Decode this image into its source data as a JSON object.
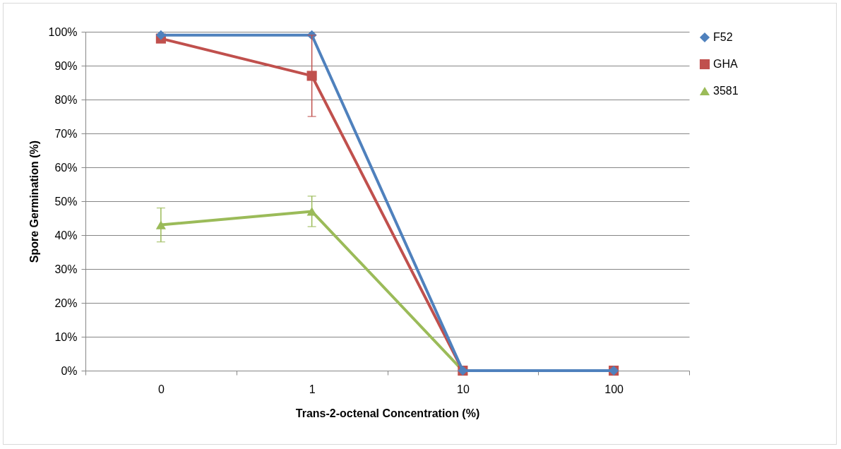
{
  "chart_data": {
    "type": "line",
    "xlabel": "Trans-2-octenal Concentration (%)",
    "ylabel": "Spore Germination (%)",
    "categories": [
      "0",
      "1",
      "10",
      "100"
    ],
    "series": [
      {
        "name": "F52",
        "color": "#4f81bd",
        "marker": "diamond",
        "values": [
          99,
          99,
          0,
          0
        ]
      },
      {
        "name": "GHA",
        "color": "#c0504d",
        "marker": "square",
        "values": [
          98,
          87,
          0,
          0
        ],
        "errors": [
          null,
          12,
          null,
          null
        ]
      },
      {
        "name": "3581",
        "color": "#9bbb59",
        "marker": "triangle",
        "values": [
          43,
          47,
          0,
          0
        ],
        "errors": [
          5,
          4.5,
          null,
          null
        ]
      }
    ],
    "ylim": [
      0,
      100
    ],
    "yticks": [
      {
        "value": 0,
        "label": "0%"
      },
      {
        "value": 10,
        "label": "10%"
      },
      {
        "value": 20,
        "label": "20%"
      },
      {
        "value": 30,
        "label": "30%"
      },
      {
        "value": 40,
        "label": "40%"
      },
      {
        "value": 50,
        "label": "50%"
      },
      {
        "value": 60,
        "label": "60%"
      },
      {
        "value": 70,
        "label": "70%"
      },
      {
        "value": 80,
        "label": "80%"
      },
      {
        "value": 90,
        "label": "90%"
      },
      {
        "value": 100,
        "label": "100%"
      }
    ],
    "grid": "y",
    "legend": "right",
    "line_style": "solid"
  }
}
